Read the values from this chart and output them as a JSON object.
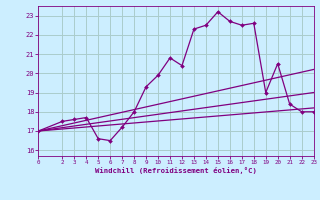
{
  "title": "",
  "xlabel": "Windchill (Refroidissement éolien,°C)",
  "ylabel": "",
  "bg_color": "#cceeff",
  "grid_color": "#aacccc",
  "line_color": "#800080",
  "xlim": [
    0,
    23
  ],
  "ylim": [
    15.7,
    23.5
  ],
  "yticks": [
    16,
    17,
    18,
    19,
    20,
    21,
    22,
    23
  ],
  "xticks": [
    0,
    2,
    3,
    4,
    5,
    6,
    7,
    8,
    9,
    10,
    11,
    12,
    13,
    14,
    15,
    16,
    17,
    18,
    19,
    20,
    21,
    22,
    23
  ],
  "series1_x": [
    0,
    2,
    3,
    4,
    5,
    6,
    7,
    8,
    9,
    10,
    11,
    12,
    13,
    14,
    15,
    16,
    17,
    18,
    19,
    20,
    21,
    22,
    23
  ],
  "series1_y": [
    17.0,
    17.5,
    17.6,
    17.7,
    16.6,
    16.5,
    17.2,
    18.0,
    19.3,
    19.9,
    20.8,
    20.4,
    22.3,
    22.5,
    23.2,
    22.7,
    22.5,
    22.6,
    19.0,
    20.5,
    18.4,
    18.0,
    18.0
  ],
  "series2_x": [
    0,
    23
  ],
  "series2_y": [
    17.0,
    18.2
  ],
  "series3_x": [
    0,
    23
  ],
  "series3_y": [
    17.0,
    19.0
  ],
  "series4_x": [
    0,
    23
  ],
  "series4_y": [
    17.0,
    20.2
  ]
}
